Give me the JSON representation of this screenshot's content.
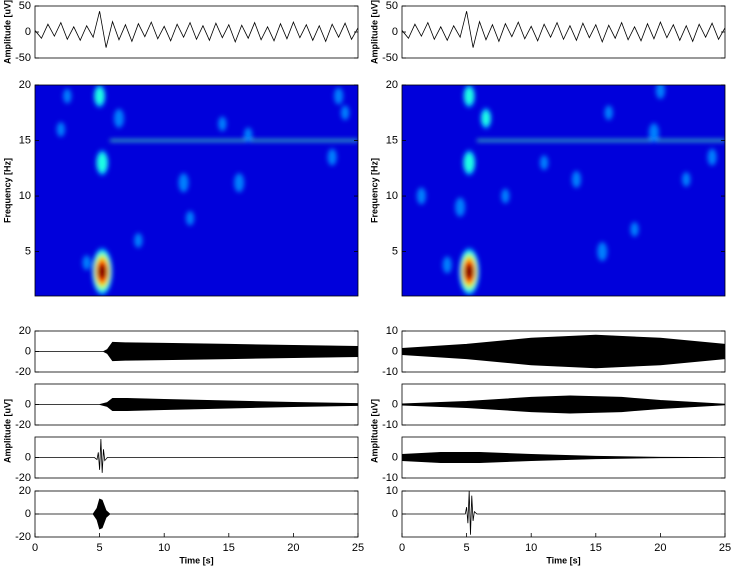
{
  "chart_data": [
    {
      "type": "line",
      "ylabel": "Amplitude [uV]",
      "color": "#000000",
      "x": [
        0,
        0.5,
        1,
        1.5,
        2,
        2.5,
        3,
        3.5,
        4,
        4.5,
        5,
        5.5,
        6,
        6.5,
        7,
        7.5,
        8,
        8.5,
        9,
        9.5,
        10,
        10.5,
        11,
        11.5,
        12,
        12.5,
        13,
        13.5,
        14,
        14.5,
        15,
        15.5,
        16,
        16.5,
        17,
        17.5,
        18,
        18.5,
        19,
        19.5,
        20,
        20.5,
        21,
        21.5,
        22,
        22.5,
        23,
        23.5,
        24,
        24.5,
        25
      ],
      "values": [
        3,
        -12,
        15,
        -8,
        18,
        -14,
        10,
        -16,
        12,
        -10,
        40,
        -30,
        20,
        -15,
        14,
        -18,
        16,
        -9,
        19,
        -13,
        11,
        -17,
        15,
        -10,
        18,
        -14,
        12,
        -16,
        17,
        -11,
        14,
        -19,
        13,
        -12,
        18,
        -15,
        10,
        -17,
        16,
        -13,
        19,
        -11,
        14,
        -16,
        12,
        -18,
        15,
        -10,
        17,
        -14,
        8
      ],
      "xlim": [
        0,
        25
      ],
      "ylim": [
        -50,
        50
      ],
      "yticks": [
        -50,
        0,
        50
      ]
    },
    {
      "type": "heatmap",
      "ylabel": "Frequency [Hz]",
      "x": [
        5.2,
        5.2,
        5.0,
        6.5,
        11.5,
        15.8,
        23.5,
        23,
        14.5,
        16.5,
        2.5,
        4,
        8,
        12,
        2,
        24
      ],
      "y": [
        3.2,
        13,
        19,
        17,
        11.2,
        11.2,
        19,
        13.5,
        16.5,
        15.5,
        19,
        4,
        6,
        8,
        16,
        17.5
      ],
      "values": [
        1.0,
        0.5,
        0.45,
        0.35,
        0.35,
        0.35,
        0.3,
        0.3,
        0.25,
        0.25,
        0.25,
        0.25,
        0.25,
        0.25,
        0.25,
        0.25
      ],
      "ridge": {
        "x": [
          5.8,
          25
        ],
        "y": [
          15,
          15
        ]
      },
      "xlim": [
        0,
        25
      ],
      "ylim": [
        1,
        20
      ],
      "yticks": [
        5,
        10,
        15,
        20
      ]
    },
    {
      "type": "area",
      "color": "#000000",
      "x": [
        0,
        5.3,
        5.6,
        6,
        7,
        10,
        15,
        20,
        25
      ],
      "values": [
        0,
        0,
        2,
        9,
        8.5,
        8,
        7,
        6,
        5
      ],
      "xlim": [
        0,
        25
      ],
      "ylim": [
        -20,
        20
      ],
      "yticks": [
        -20,
        0,
        20
      ]
    },
    {
      "type": "area",
      "ylabel": "Amplitude [uV]",
      "color": "#000000",
      "x": [
        0,
        5,
        5.6,
        6,
        7,
        10,
        15,
        20,
        25
      ],
      "values": [
        0,
        0,
        2,
        6,
        6,
        5,
        3.5,
        2,
        1
      ],
      "xlim": [
        0,
        25
      ],
      "ylim": [
        -20,
        20
      ],
      "yticks": [
        -20,
        0
      ]
    },
    {
      "type": "line",
      "color": "#000000",
      "x": [
        0,
        4.6,
        4.8,
        4.9,
        5.0,
        5.1,
        5.2,
        5.3,
        5.4,
        5.6,
        25
      ],
      "values": [
        0,
        0,
        -2,
        5,
        -12,
        18,
        -15,
        8,
        -3,
        0,
        0
      ],
      "xlim": [
        0,
        25
      ],
      "ylim": [
        -20,
        20
      ],
      "yticks": [
        -20,
        0
      ]
    },
    {
      "type": "area",
      "color": "#000000",
      "x": [
        0,
        4.5,
        4.8,
        5,
        5.2,
        5.5,
        5.8,
        25
      ],
      "values": [
        0,
        0,
        5,
        13,
        12,
        3,
        0,
        0
      ],
      "xlim": [
        0,
        25
      ],
      "ylim": [
        -20,
        20
      ],
      "yticks": [
        -20,
        0,
        20
      ],
      "xticks": [
        0,
        5,
        10,
        15,
        20,
        25
      ],
      "xlabel": "Time [s]"
    },
    {
      "type": "line",
      "ylabel": "Amplitude [uV]",
      "color": "#000000",
      "x": [
        0,
        0.5,
        1,
        1.5,
        2,
        2.5,
        3,
        3.5,
        4,
        4.5,
        5,
        5.5,
        6,
        6.5,
        7,
        7.5,
        8,
        8.5,
        9,
        9.5,
        10,
        10.5,
        11,
        11.5,
        12,
        12.5,
        13,
        13.5,
        14,
        14.5,
        15,
        15.5,
        16,
        16.5,
        17,
        17.5,
        18,
        18.5,
        19,
        19.5,
        20,
        20.5,
        21,
        21.5,
        22,
        22.5,
        23,
        23.5,
        24,
        24.5,
        25
      ],
      "values": [
        3,
        -12,
        15,
        -8,
        18,
        -14,
        10,
        -16,
        12,
        -10,
        40,
        -30,
        20,
        -15,
        14,
        -18,
        16,
        -9,
        19,
        -13,
        11,
        -17,
        15,
        -10,
        18,
        -14,
        12,
        -16,
        17,
        -11,
        14,
        -19,
        13,
        -12,
        18,
        -15,
        10,
        -17,
        16,
        -13,
        19,
        -11,
        14,
        -16,
        12,
        -18,
        15,
        -10,
        17,
        -14,
        8
      ],
      "xlim": [
        0,
        25
      ],
      "ylim": [
        -50,
        50
      ],
      "yticks": [
        -50,
        0,
        50
      ]
    },
    {
      "type": "heatmap",
      "ylabel": "Frequency [Hz]",
      "x": [
        5.2,
        5.2,
        5.2,
        6.5,
        4.5,
        13.5,
        15.5,
        16,
        19.5,
        20,
        24,
        22,
        1.5,
        3.5,
        8,
        11,
        18
      ],
      "y": [
        3.2,
        13,
        19,
        17,
        9,
        11.5,
        5,
        17.5,
        15.7,
        19.5,
        13.5,
        11.5,
        10,
        3.8,
        10,
        13,
        7
      ],
      "values": [
        1.0,
        0.5,
        0.45,
        0.4,
        0.35,
        0.3,
        0.35,
        0.25,
        0.35,
        0.3,
        0.3,
        0.25,
        0.3,
        0.3,
        0.25,
        0.25,
        0.25
      ],
      "ridge": {
        "x": [
          5.8,
          25
        ],
        "y": [
          15,
          15
        ]
      },
      "xlim": [
        0,
        25
      ],
      "ylim": [
        1,
        20
      ],
      "yticks": [
        5,
        10,
        15,
        20
      ]
    },
    {
      "type": "area",
      "color": "#000000",
      "x": [
        0,
        5,
        10,
        15,
        20,
        25
      ],
      "values": [
        1.5,
        3.5,
        6.5,
        8,
        6.5,
        3.5
      ],
      "xlim": [
        0,
        25
      ],
      "ylim": [
        -10,
        10
      ],
      "yticks": [
        -10,
        0,
        10
      ]
    },
    {
      "type": "area",
      "ylabel": "Amplitude [uV]",
      "color": "#000000",
      "x": [
        0,
        5,
        10,
        13,
        17,
        20,
        25
      ],
      "values": [
        0.3,
        1.5,
        3.5,
        4.2,
        3.5,
        2,
        0.2
      ],
      "xlim": [
        0,
        25
      ],
      "ylim": [
        -10,
        10
      ],
      "yticks": [
        -10,
        0
      ]
    },
    {
      "type": "area",
      "color": "#000000",
      "x": [
        0,
        3,
        6,
        10,
        15,
        20,
        25
      ],
      "values": [
        1.5,
        2.5,
        2.5,
        1.5,
        0.6,
        0.1,
        0
      ],
      "xlim": [
        0,
        25
      ],
      "ylim": [
        -10,
        10
      ],
      "yticks": [
        -10,
        0
      ]
    },
    {
      "type": "line",
      "color": "#000000",
      "x": [
        0,
        4.9,
        5.0,
        5.1,
        5.2,
        5.3,
        5.4,
        5.5,
        5.6,
        5.8,
        25
      ],
      "values": [
        0,
        0,
        3,
        -4,
        10,
        -9,
        8,
        -3,
        1,
        0,
        0
      ],
      "xlim": [
        0,
        25
      ],
      "ylim": [
        -10,
        10
      ],
      "yticks": [
        0,
        10
      ],
      "xticks": [
        0,
        5,
        10,
        15,
        20,
        25
      ],
      "xlabel": "Time [s]"
    }
  ]
}
